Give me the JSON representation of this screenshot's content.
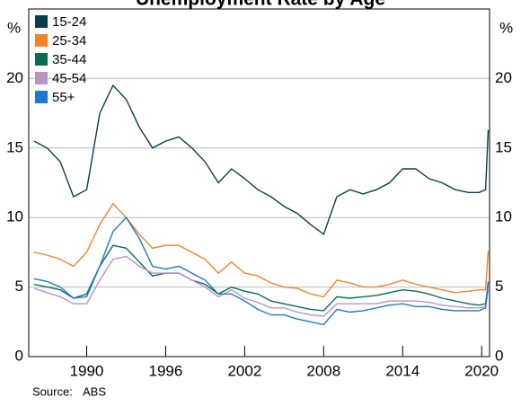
{
  "chart_data": {
    "type": "line",
    "title": "Unemployment Rate by Age",
    "y_unit": "%",
    "x": [
      1986,
      1987,
      1988,
      1989,
      1990,
      1991,
      1992,
      1993,
      1994,
      1995,
      1996,
      1997,
      1998,
      1999,
      2000,
      2001,
      2002,
      2003,
      2004,
      2005,
      2006,
      2007,
      2008,
      2009,
      2010,
      2011,
      2012,
      2013,
      2014,
      2015,
      2016,
      2017,
      2018,
      2019,
      2019.8,
      2020.3,
      2020.5
    ],
    "series": [
      {
        "name": "15-24",
        "color": "#083e4c",
        "values": [
          15.5,
          15,
          14,
          11.5,
          12,
          17.5,
          19.5,
          18.5,
          16.5,
          15,
          15.5,
          15.8,
          15,
          14,
          12.5,
          13.5,
          12.8,
          12,
          11.5,
          10.8,
          10.3,
          9.5,
          8.8,
          11.5,
          12,
          11.7,
          12,
          12.5,
          13.5,
          13.5,
          12.8,
          12.5,
          12,
          11.8,
          11.8,
          12,
          16.3
        ]
      },
      {
        "name": "25-34",
        "color": "#f5822a",
        "values": [
          7.5,
          7.3,
          7,
          6.5,
          7.5,
          9.5,
          11,
          10,
          8.8,
          7.8,
          8,
          8,
          7.5,
          7,
          6,
          6.8,
          6,
          5.8,
          5.3,
          5,
          4.9,
          4.5,
          4.3,
          5.5,
          5.3,
          5,
          5,
          5.2,
          5.5,
          5.2,
          5,
          4.8,
          4.6,
          4.7,
          4.8,
          4.8,
          7.6
        ]
      },
      {
        "name": "35-44",
        "color": "#0a6b55",
        "values": [
          5.2,
          5,
          4.8,
          4.2,
          4.5,
          6.5,
          8,
          7.8,
          6.8,
          5.8,
          6,
          6,
          5.5,
          5.2,
          4.5,
          5,
          4.7,
          4.5,
          4,
          3.8,
          3.6,
          3.4,
          3.3,
          4.3,
          4.2,
          4.3,
          4.4,
          4.6,
          4.8,
          4.7,
          4.5,
          4.2,
          4,
          3.8,
          3.7,
          3.8,
          5.3
        ]
      },
      {
        "name": "45-54",
        "color": "#b894c4",
        "values": [
          4.9,
          4.6,
          4.3,
          3.8,
          3.8,
          5.5,
          7,
          7.2,
          6.5,
          6,
          6,
          6,
          5.5,
          5,
          4.3,
          4.8,
          4.2,
          3.9,
          3.5,
          3.5,
          3.2,
          3,
          2.9,
          3.8,
          3.8,
          3.8,
          3.8,
          4,
          4,
          4,
          3.9,
          3.7,
          3.6,
          3.5,
          3.5,
          3.6,
          4.8
        ]
      },
      {
        "name": "55+",
        "color": "#1e78d2",
        "values": [
          5.6,
          5.4,
          5,
          4.2,
          4.3,
          6.5,
          9,
          10,
          8.5,
          6.5,
          6.3,
          6.5,
          6,
          5.5,
          4.5,
          4.5,
          4,
          3.4,
          3,
          3,
          2.7,
          2.5,
          2.3,
          3.4,
          3.2,
          3.3,
          3.5,
          3.7,
          3.8,
          3.6,
          3.6,
          3.4,
          3.3,
          3.3,
          3.3,
          3.5,
          5.4
        ]
      }
    ],
    "xlim": [
      1985.6,
      2020.6
    ],
    "xticks": [
      1990,
      1996,
      2002,
      2008,
      2014,
      2020
    ],
    "ylim": [
      0,
      25
    ],
    "yticks": [
      0,
      5,
      10,
      15,
      20
    ],
    "grid": true,
    "source_label": "Source:",
    "source": "ABS"
  }
}
